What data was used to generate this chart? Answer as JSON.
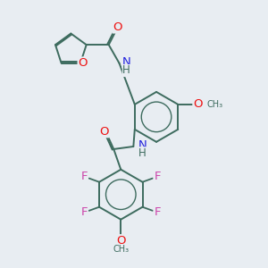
{
  "background_color": "#e8edf2",
  "bond_color": "#3d6b5e",
  "atom_colors": {
    "O": "#ee1111",
    "N": "#2222dd",
    "F": "#cc44aa",
    "C": "#3d6b5e"
  },
  "font_size": 8.5,
  "figsize": [
    3.0,
    3.0
  ],
  "dpi": 100,
  "xlim": [
    0,
    10
  ],
  "ylim": [
    0,
    10
  ]
}
